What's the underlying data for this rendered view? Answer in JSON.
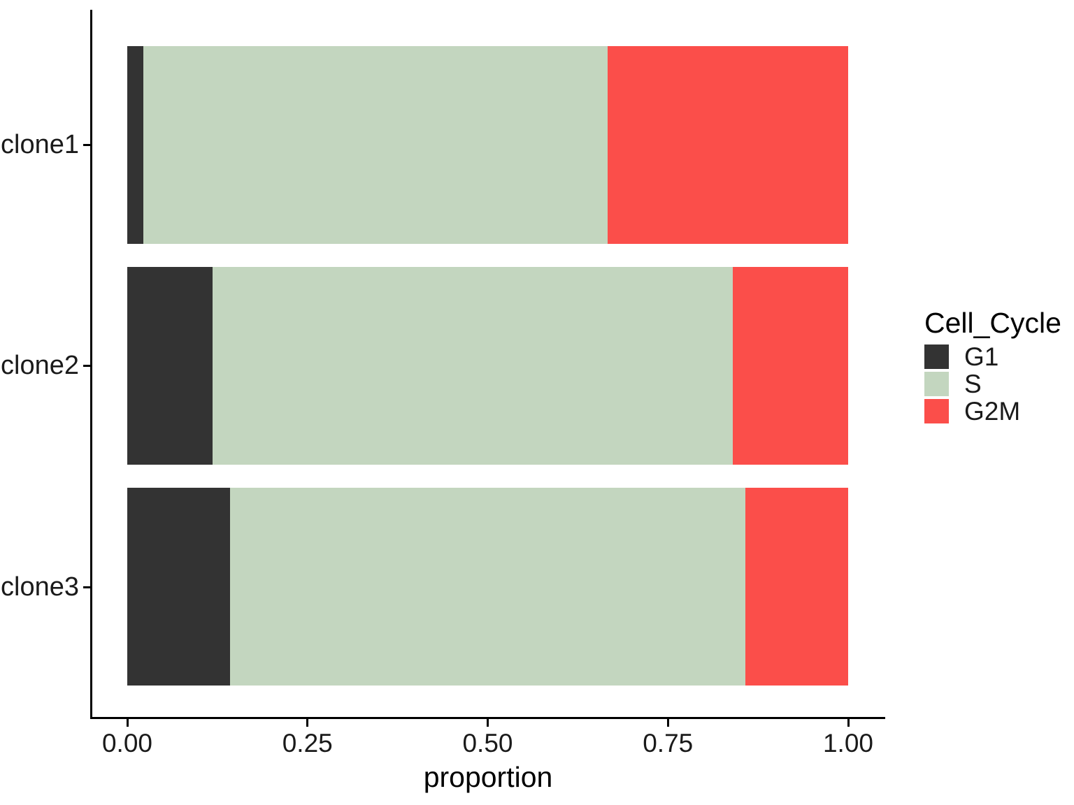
{
  "chart_data": {
    "type": "bar",
    "orientation": "horizontal_stacked",
    "title": "",
    "xlabel": "proportion",
    "ylabel": "",
    "categories": [
      "clone1",
      "clone2",
      "clone3"
    ],
    "series": [
      {
        "name": "G1",
        "color": "#333333",
        "values": [
          0.022,
          0.118,
          0.143
        ]
      },
      {
        "name": "S",
        "color": "#c3d6bf",
        "values": [
          0.644,
          0.722,
          0.714
        ]
      },
      {
        "name": "G2M",
        "color": "#fb4e4a",
        "values": [
          0.334,
          0.16,
          0.143
        ]
      }
    ],
    "xlim": [
      0,
      1
    ],
    "x_tick_values": [
      0,
      0.25,
      0.5,
      0.75,
      1.0
    ],
    "x_tick_labels": [
      "0.00",
      "0.25",
      "0.50",
      "0.75",
      "1.00"
    ],
    "grid": false,
    "legend": {
      "title": "Cell_Cycle",
      "position": "right",
      "items": [
        "G1",
        "S",
        "G2M"
      ]
    },
    "background": "#ffffff",
    "axis_color": "#000000"
  }
}
